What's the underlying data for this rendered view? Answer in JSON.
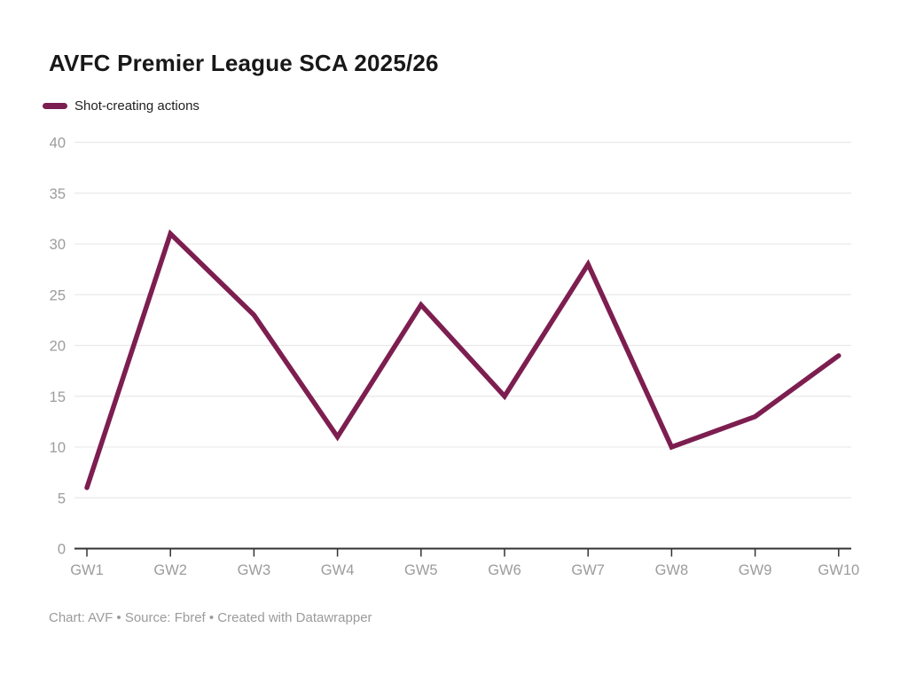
{
  "title": "AVFC Premier League SCA 2025/26",
  "legend": {
    "series_label": "Shot-creating actions"
  },
  "footer": "Chart: AVF • Source: Fbref • Created with Datawrapper",
  "colors": {
    "line": "#7d1e50",
    "grid": "#e9e9e9",
    "axis": "#333333",
    "tick_label": "#9c9c9c",
    "title": "#181818",
    "footer": "#9b9b9b"
  },
  "chart_data": {
    "type": "line",
    "title": "AVFC Premier League SCA 2025/26",
    "categories": [
      "GW1",
      "GW2",
      "GW3",
      "GW4",
      "GW5",
      "GW6",
      "GW7",
      "GW8",
      "GW9",
      "GW10"
    ],
    "series": [
      {
        "name": "Shot-creating actions",
        "values": [
          6,
          31,
          23,
          11,
          24,
          15,
          28,
          10,
          13,
          19
        ]
      }
    ],
    "xlabel": "",
    "ylabel": "",
    "ylim": [
      0,
      40
    ],
    "ytick_step": 5,
    "grid": true,
    "legend_position": "top-left"
  }
}
